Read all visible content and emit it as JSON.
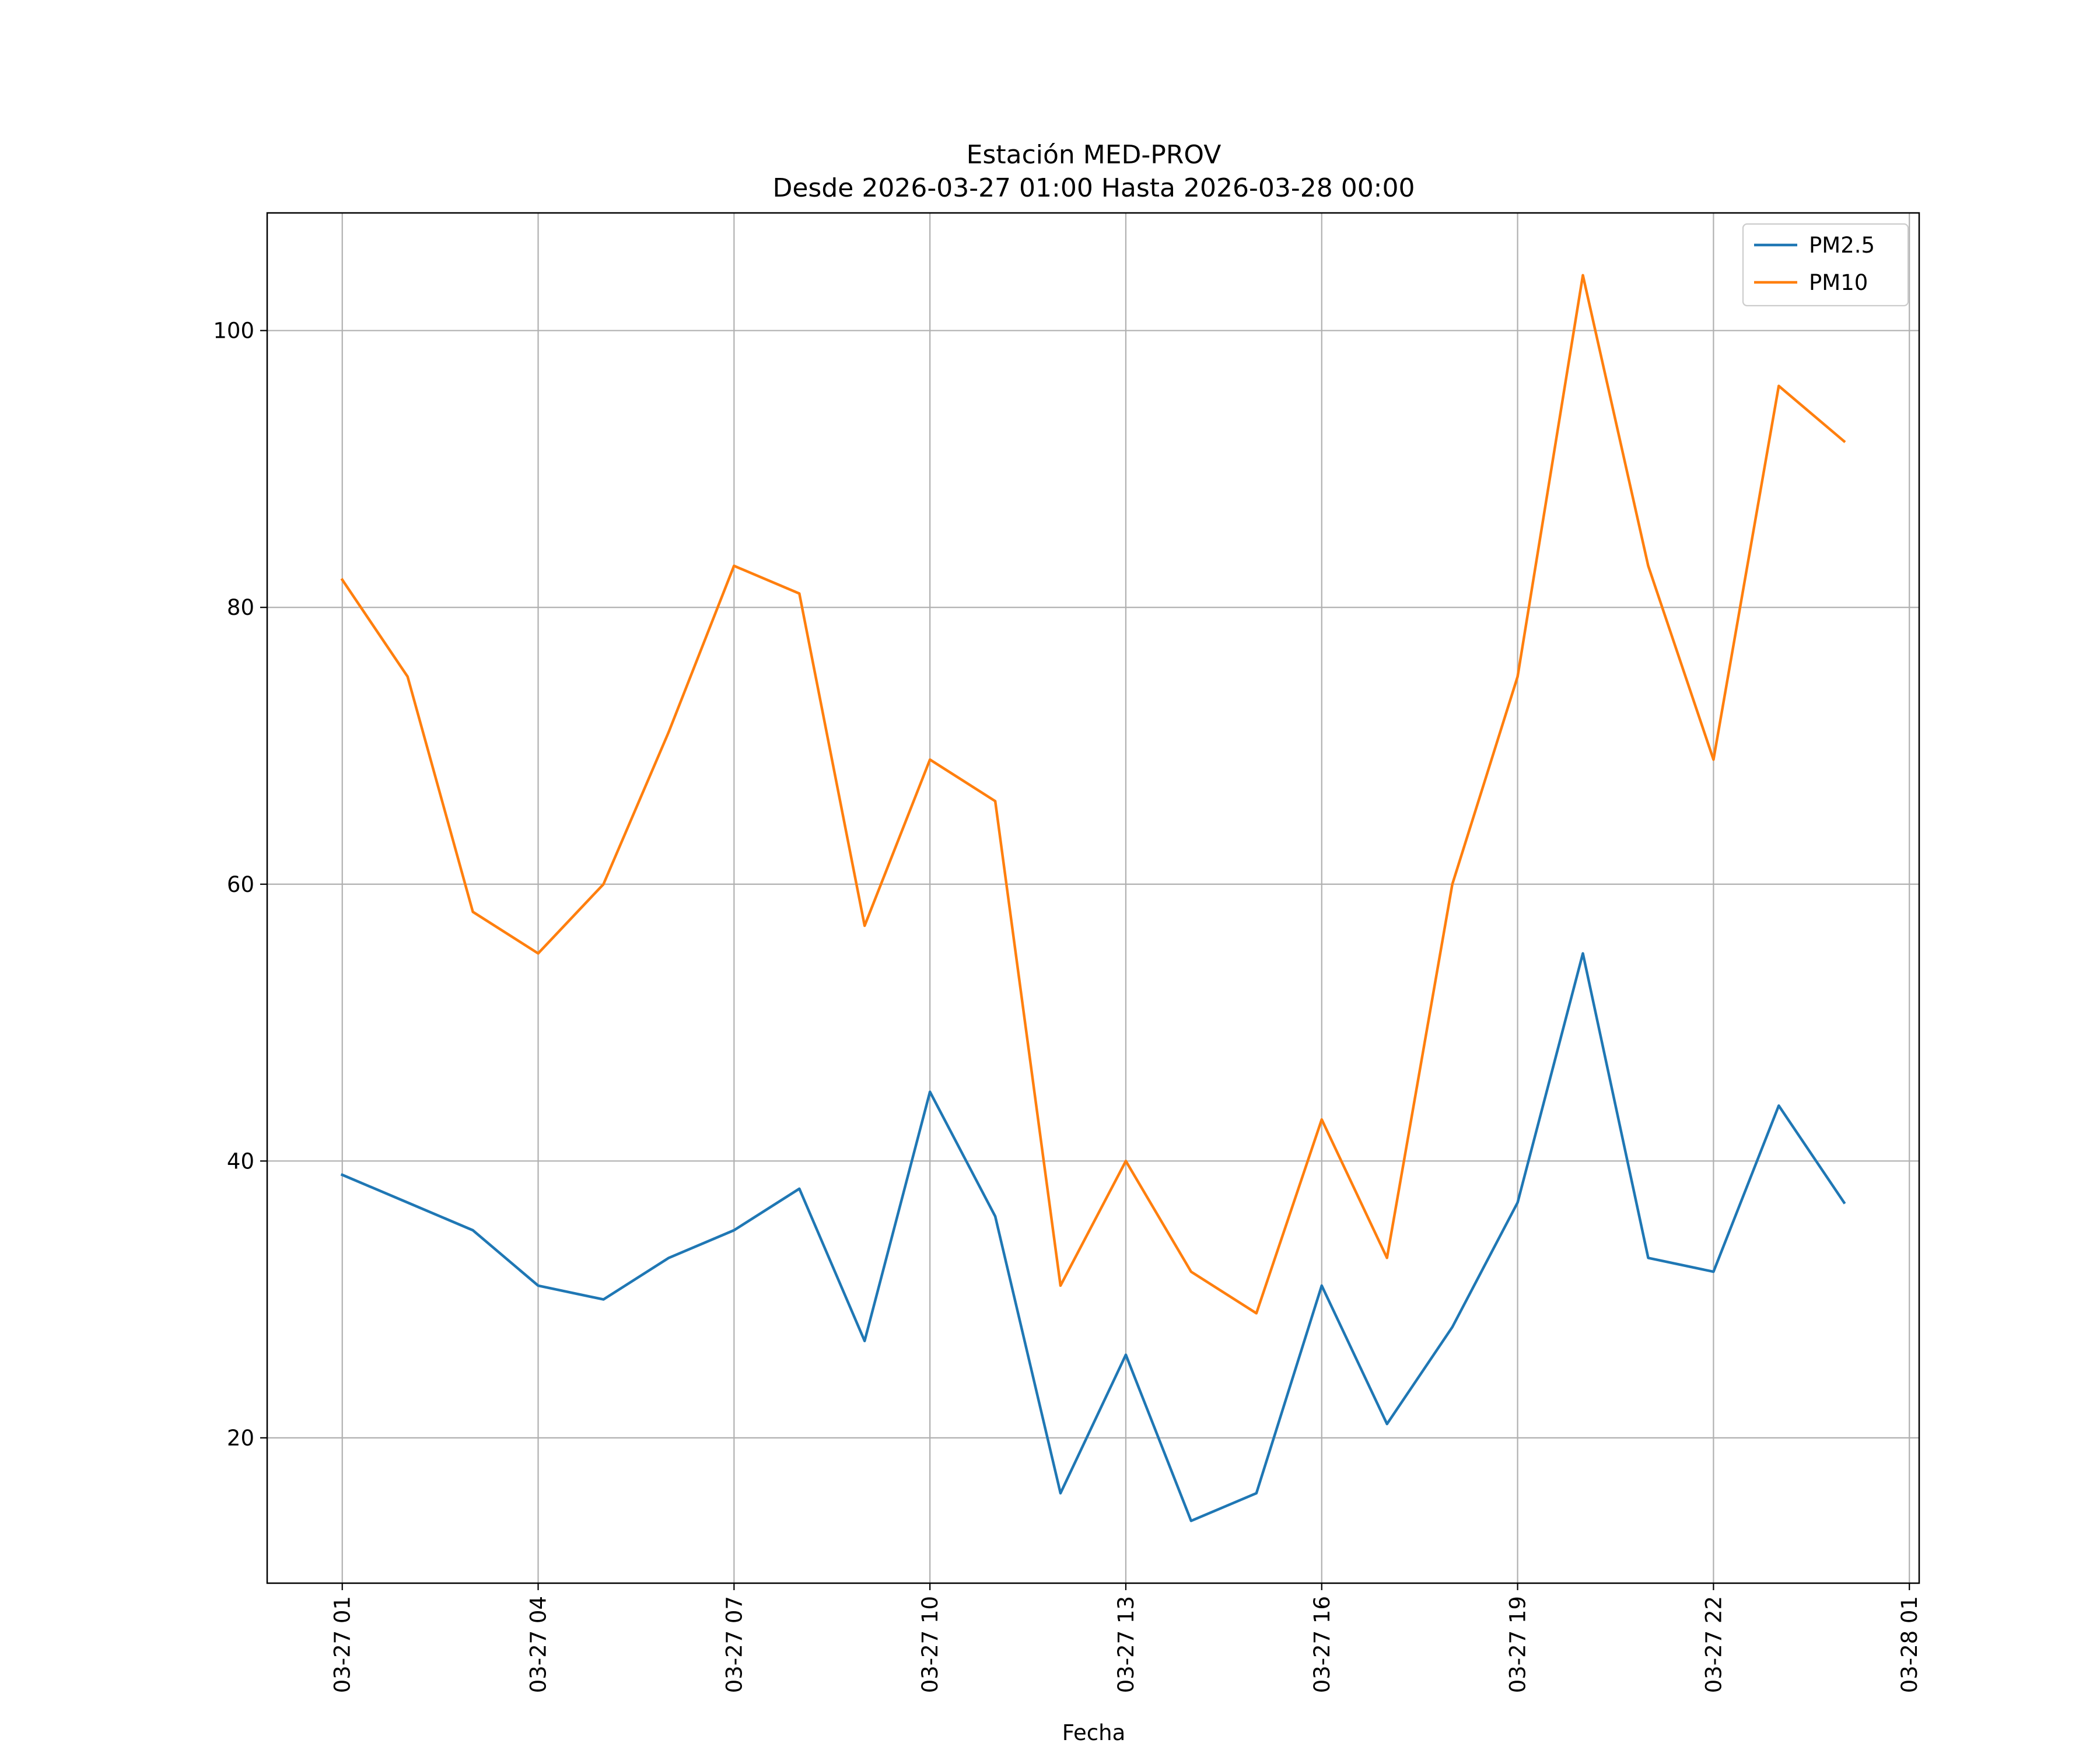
{
  "chart_data": {
    "type": "line",
    "title": "Estación MED-PROV",
    "subtitle": "Desde 2026-03-27 01:00 Hasta 2026-03-28 00:00",
    "xlabel": "Fecha",
    "ylabel": "",
    "x": [
      "03-27 01:00",
      "03-27 02:00",
      "03-27 03:00",
      "03-27 04:00",
      "03-27 05:00",
      "03-27 06:00",
      "03-27 07:00",
      "03-27 08:00",
      "03-27 09:00",
      "03-27 10:00",
      "03-27 11:00",
      "03-27 12:00",
      "03-27 13:00",
      "03-27 14:00",
      "03-27 15:00",
      "03-27 16:00",
      "03-27 17:00",
      "03-27 18:00",
      "03-27 19:00",
      "03-27 20:00",
      "03-27 21:00",
      "03-27 22:00",
      "03-27 23:00",
      "03-28 00:00"
    ],
    "x_hours": [
      1,
      2,
      3,
      4,
      5,
      6,
      7,
      8,
      9,
      10,
      11,
      12,
      13,
      14,
      15,
      16,
      17,
      18,
      19,
      20,
      21,
      22,
      23,
      24
    ],
    "xlim": [
      -0.15,
      25.15
    ],
    "x_ticks": [
      {
        "hour": 1,
        "label": "03-27 01"
      },
      {
        "hour": 4,
        "label": "03-27 04"
      },
      {
        "hour": 7,
        "label": "03-27 07"
      },
      {
        "hour": 10,
        "label": "03-27 10"
      },
      {
        "hour": 13,
        "label": "03-27 13"
      },
      {
        "hour": 16,
        "label": "03-27 16"
      },
      {
        "hour": 19,
        "label": "03-27 19"
      },
      {
        "hour": 22,
        "label": "03-27 22"
      },
      {
        "hour": 25,
        "label": "03-28 01"
      }
    ],
    "ylim": [
      9.5,
      108.5
    ],
    "y_ticks": [
      20,
      40,
      60,
      80,
      100
    ],
    "grid": true,
    "legend_position": "top-right",
    "series": [
      {
        "name": "PM2.5",
        "color": "#1f77b4",
        "values": [
          39,
          37,
          35,
          31,
          30,
          33,
          35,
          38,
          27,
          45,
          36,
          16,
          26,
          14,
          16,
          31,
          21,
          28,
          37,
          55,
          33,
          32,
          44,
          37
        ]
      },
      {
        "name": "PM10",
        "color": "#ff7f0e",
        "values": [
          82,
          75,
          58,
          55,
          60,
          71,
          83,
          81,
          57,
          69,
          66,
          31,
          40,
          32,
          29,
          43,
          33,
          60,
          75,
          104,
          83,
          69,
          96,
          92
        ]
      }
    ]
  }
}
